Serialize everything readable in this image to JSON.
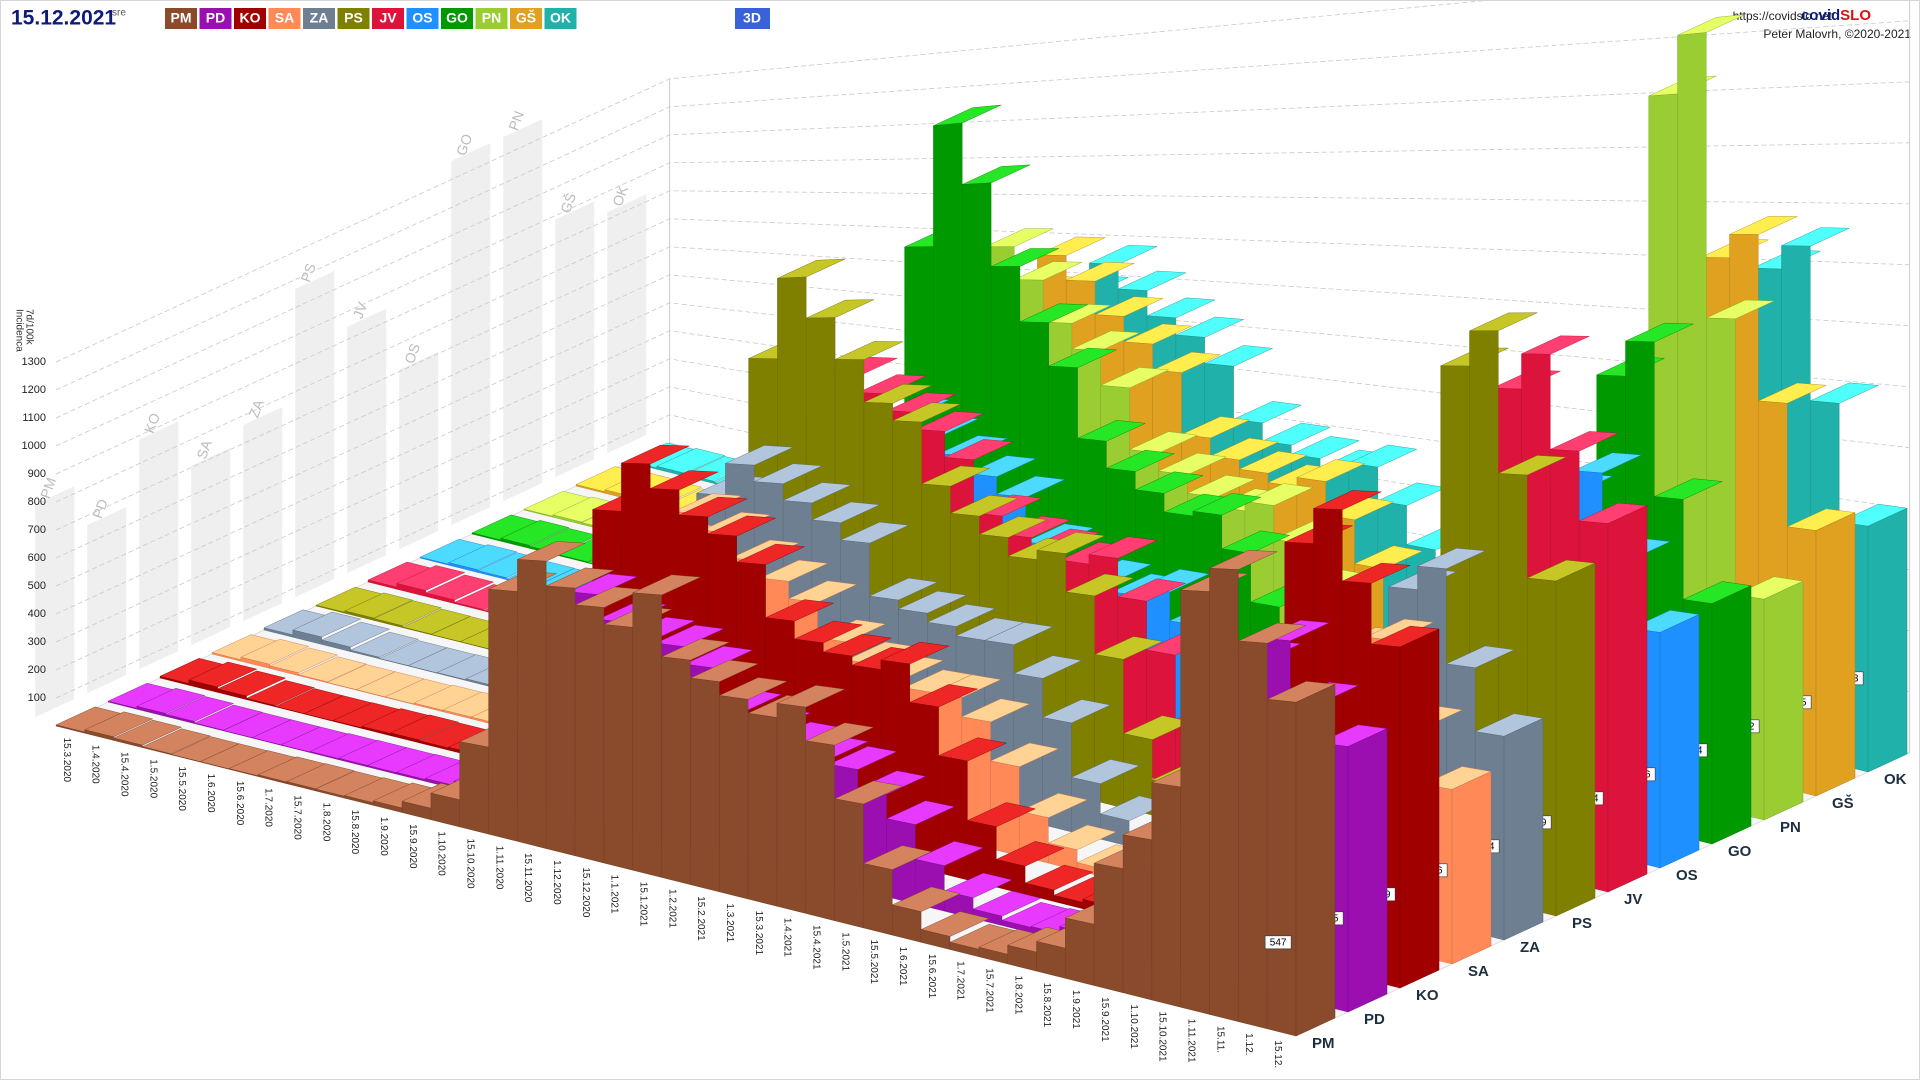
{
  "header": {
    "date": "15.12.2021",
    "weekday": "sre",
    "url": "https://covidslo.net",
    "brand_a": "covid",
    "brand_b": "SLO",
    "author": "Peter Malovrh, ©2020-2021",
    "view_button": "3D"
  },
  "chart_data": {
    "type": "ribbon3d",
    "y_label": [
      "7d/100k",
      "Incidenca"
    ],
    "x": [
      "15.3.2020",
      "1.4.2020",
      "15.4.2020",
      "1.5.2020",
      "15.5.2020",
      "1.6.2020",
      "15.6.2020",
      "1.7.2020",
      "15.7.2020",
      "1.8.2020",
      "15.8.2020",
      "1.9.2020",
      "15.9.2020",
      "1.10.2020",
      "15.10.2020",
      "1.11.2020",
      "15.11.2020",
      "1.12.2020",
      "15.12.2020",
      "1.1.2021",
      "15.1.2021",
      "1.2.2021",
      "15.2.2021",
      "1.3.2021",
      "15.3.2021",
      "1.4.2021",
      "15.4.2021",
      "1.5.2021",
      "15.5.2021",
      "1.6.2021",
      "15.6.2021",
      "1.7.2021",
      "15.7.2021",
      "1.8.2021",
      "15.8.2021",
      "1.9.2021",
      "15.9.2021",
      "1.10.2021",
      "15.10.2021",
      "1.11.2021",
      "15.11.",
      "1.12.",
      "15.12."
    ],
    "series": [
      {
        "name": "PM",
        "color": "#8a4a2c",
        "values": [
          4,
          12,
          8,
          3,
          1,
          1,
          2,
          5,
          6,
          5,
          7,
          12,
          30,
          70,
          220,
          620,
          700,
          640,
          600,
          560,
          640,
          500,
          460,
          430,
          400,
          430,
          360,
          250,
          130,
          60,
          25,
          14,
          18,
          35,
          55,
          110,
          220,
          280,
          380,
          720,
          760,
          640,
          547
        ]
      },
      {
        "name": "PD",
        "color": "#9b0fb0",
        "values": [
          3,
          10,
          7,
          2,
          1,
          1,
          1,
          3,
          4,
          4,
          5,
          8,
          20,
          55,
          180,
          480,
          560,
          500,
          470,
          460,
          420,
          330,
          300,
          280,
          260,
          250,
          210,
          160,
          90,
          40,
          18,
          10,
          12,
          25,
          40,
          90,
          170,
          220,
          300,
          560,
          600,
          500,
          435
        ]
      },
      {
        "name": "KO",
        "color": "#a00000",
        "values": [
          6,
          18,
          12,
          4,
          1,
          1,
          2,
          6,
          8,
          6,
          8,
          14,
          35,
          90,
          260,
          700,
          820,
          760,
          700,
          660,
          600,
          480,
          440,
          420,
          400,
          420,
          340,
          240,
          120,
          55,
          22,
          12,
          18,
          40,
          60,
          120,
          240,
          300,
          400,
          720,
          780,
          660,
          559
        ]
      },
      {
        "name": "SA",
        "color": "#ff8a58",
        "values": [
          5,
          14,
          9,
          3,
          1,
          1,
          1,
          4,
          5,
          5,
          6,
          10,
          25,
          60,
          200,
          560,
          640,
          600,
          540,
          500,
          460,
          380,
          340,
          320,
          300,
          300,
          260,
          180,
          90,
          40,
          15,
          10,
          14,
          30,
          45,
          90,
          180,
          230,
          300,
          500,
          520,
          380,
          286
        ]
      },
      {
        "name": "ZA",
        "color": "#6f7f92",
        "values": [
          8,
          25,
          15,
          5,
          1,
          1,
          2,
          5,
          6,
          5,
          7,
          12,
          30,
          80,
          240,
          620,
          700,
          660,
          620,
          580,
          540,
          420,
          400,
          380,
          360,
          360,
          300,
          220,
          110,
          50,
          20,
          12,
          16,
          35,
          50,
          100,
          200,
          260,
          340,
          560,
          600,
          440,
          334
        ]
      },
      {
        "name": "PS",
        "color": "#808000",
        "values": [
          3,
          8,
          6,
          2,
          1,
          1,
          2,
          6,
          7,
          6,
          8,
          14,
          40,
          110,
          350,
          900,
          1100,
          1000,
          900,
          800,
          760,
          620,
          560,
          520,
          480,
          500,
          420,
          300,
          150,
          70,
          28,
          15,
          22,
          45,
          70,
          140,
          280,
          360,
          480,
          900,
          960,
          720,
          549
        ]
      },
      {
        "name": "JV",
        "color": "#dc143c",
        "values": [
          7,
          20,
          12,
          4,
          1,
          1,
          2,
          6,
          8,
          6,
          8,
          14,
          35,
          90,
          280,
          700,
          800,
          760,
          720,
          680,
          620,
          500,
          460,
          440,
          420,
          440,
          360,
          260,
          130,
          60,
          25,
          14,
          20,
          40,
          60,
          130,
          260,
          330,
          440,
          820,
          880,
          720,
          604
        ]
      },
      {
        "name": "OS",
        "color": "#1e90ff",
        "values": [
          3,
          9,
          6,
          2,
          1,
          1,
          1,
          4,
          5,
          5,
          6,
          10,
          25,
          65,
          220,
          560,
          640,
          600,
          560,
          520,
          480,
          380,
          340,
          320,
          300,
          320,
          260,
          190,
          95,
          45,
          18,
          10,
          14,
          30,
          45,
          95,
          190,
          250,
          330,
          600,
          640,
          500,
          386
        ]
      },
      {
        "name": "GO",
        "color": "#009a00",
        "values": [
          4,
          10,
          7,
          3,
          1,
          1,
          2,
          5,
          6,
          5,
          7,
          12,
          35,
          120,
          420,
          1000,
          1300,
          1150,
          950,
          820,
          720,
          560,
          500,
          460,
          420,
          430,
          360,
          260,
          130,
          60,
          24,
          13,
          18,
          38,
          55,
          110,
          220,
          290,
          380,
          760,
          820,
          560,
          394
        ]
      },
      {
        "name": "PN",
        "color": "#9acd32",
        "values": [
          3,
          8,
          6,
          2,
          1,
          1,
          2,
          5,
          6,
          6,
          8,
          14,
          40,
          110,
          340,
          820,
          940,
          860,
          760,
          700,
          620,
          480,
          440,
          400,
          380,
          400,
          330,
          240,
          120,
          55,
          22,
          12,
          18,
          40,
          65,
          140,
          300,
          400,
          560,
          1200,
          1300,
          820,
          362
        ]
      },
      {
        "name": "GŠ",
        "color": "#e0a020",
        "values": [
          5,
          12,
          8,
          3,
          1,
          1,
          2,
          5,
          7,
          6,
          8,
          14,
          40,
          100,
          300,
          760,
          860,
          800,
          720,
          660,
          600,
          460,
          420,
          400,
          380,
          400,
          330,
          240,
          120,
          55,
          22,
          12,
          18,
          40,
          60,
          130,
          260,
          340,
          460,
          880,
          920,
          640,
          435
        ]
      },
      {
        "name": "OK",
        "color": "#20b2aa",
        "values": [
          4,
          10,
          7,
          3,
          1,
          1,
          2,
          5,
          6,
          6,
          8,
          14,
          35,
          90,
          280,
          700,
          780,
          720,
          660,
          620,
          560,
          440,
          400,
          380,
          360,
          380,
          310,
          230,
          115,
          52,
          21,
          12,
          17,
          38,
          58,
          125,
          250,
          330,
          440,
          820,
          860,
          600,
          403
        ]
      }
    ],
    "ylim": [
      0,
      1300
    ],
    "yticks": [
      100,
      200,
      300,
      400,
      500,
      600,
      700,
      800,
      900,
      1000,
      1100,
      1200,
      1300
    ],
    "grid": true
  }
}
